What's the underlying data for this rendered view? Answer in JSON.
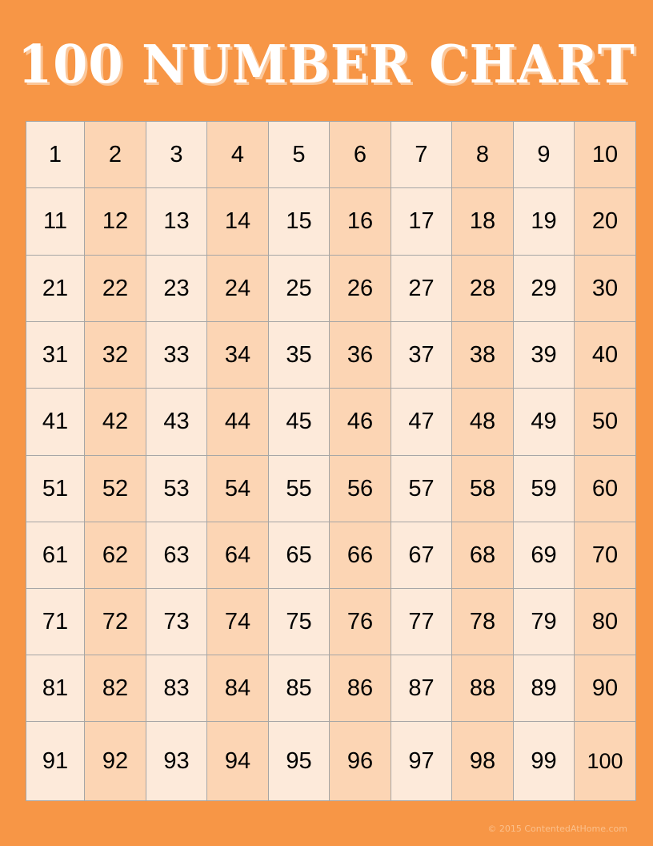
{
  "title": "100 NUMBER CHART",
  "colors": {
    "background": "#f79646",
    "light_column": "#fdeada",
    "dark_column": "#fcd5b4",
    "grid_line": "#a6a6a6"
  },
  "grid": {
    "rows": [
      [
        "1",
        "2",
        "3",
        "4",
        "5",
        "6",
        "7",
        "8",
        "9",
        "10"
      ],
      [
        "11",
        "12",
        "13",
        "14",
        "15",
        "16",
        "17",
        "18",
        "19",
        "20"
      ],
      [
        "21",
        "22",
        "23",
        "24",
        "25",
        "26",
        "27",
        "28",
        "29",
        "30"
      ],
      [
        "31",
        "32",
        "33",
        "34",
        "35",
        "36",
        "37",
        "38",
        "39",
        "40"
      ],
      [
        "41",
        "42",
        "43",
        "44",
        "45",
        "46",
        "47",
        "48",
        "49",
        "50"
      ],
      [
        "51",
        "52",
        "53",
        "54",
        "55",
        "56",
        "57",
        "58",
        "59",
        "60"
      ],
      [
        "61",
        "62",
        "63",
        "64",
        "65",
        "66",
        "67",
        "68",
        "69",
        "70"
      ],
      [
        "71",
        "72",
        "73",
        "74",
        "75",
        "76",
        "77",
        "78",
        "79",
        "80"
      ],
      [
        "81",
        "82",
        "83",
        "84",
        "85",
        "86",
        "87",
        "88",
        "89",
        "90"
      ],
      [
        "91",
        "92",
        "93",
        "94",
        "95",
        "96",
        "97",
        "98",
        "99",
        "100"
      ]
    ]
  },
  "footer": "© 2015 ContentedAtHome.com"
}
